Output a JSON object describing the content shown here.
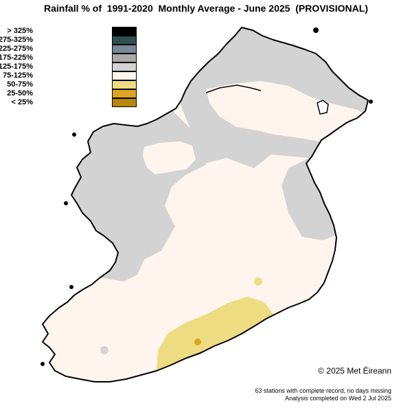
{
  "title": "Rainfall % of  1991-2020  Monthly Average - June 2025  (PROVISIONAL)",
  "legend": [
    {
      "label": "> 325%",
      "color": "#000000"
    },
    {
      "label": "275-325%",
      "color": "#2f4f4f"
    },
    {
      "label": "225-275%",
      "color": "#778899"
    },
    {
      "label": "175-225%",
      "color": "#a9a9a9"
    },
    {
      "label": "125-175%",
      "color": "#d3d3d3"
    },
    {
      "label": "75-125%",
      "color": "#fff5ee"
    },
    {
      "label": "50-75%",
      "color": "#eedc82"
    },
    {
      "label": "25-50%",
      "color": "#daa520"
    },
    {
      "label": "< 25%",
      "color": "#b8860b"
    }
  ],
  "copyright": "© 2025 Met Éireann",
  "footer": {
    "line1": "63 stations with complete record, no days missing",
    "line2": "Analysis completed on Wed 2 Jul 2025"
  }
}
